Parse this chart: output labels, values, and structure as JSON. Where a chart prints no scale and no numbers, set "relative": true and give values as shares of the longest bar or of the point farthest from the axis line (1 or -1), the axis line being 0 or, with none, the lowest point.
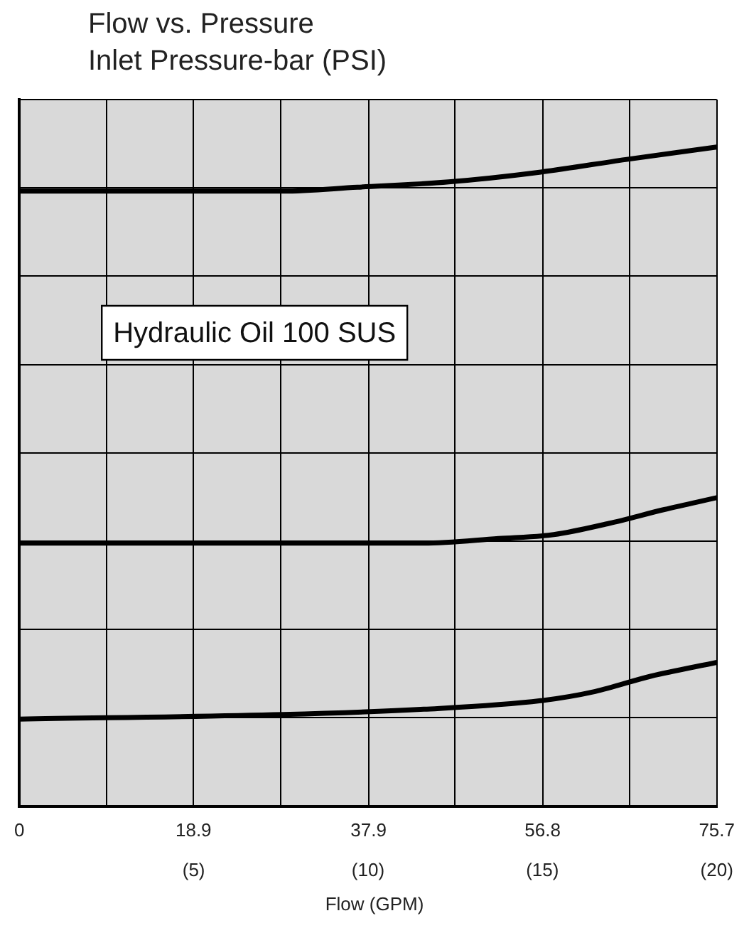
{
  "chart_data": {
    "type": "line",
    "title": "Flow vs. Pressure",
    "ylabel": "Inlet Pressure-bar (PSI)",
    "xlabel": "Flow (GPM)",
    "relative": true,
    "grid": true,
    "legend": false,
    "marker": "none",
    "line_style": "solid",
    "xlim": [
      0,
      75.7
    ],
    "xticks": [
      0,
      {
        "value": 9.46,
        "label": null
      },
      18.9,
      {
        "value": 28.4,
        "label": null
      },
      37.9,
      {
        "value": 47.3,
        "label": null
      },
      56.8,
      {
        "value": 66.2,
        "label": null
      },
      75.7
    ],
    "x2lim": [
      0,
      20
    ],
    "x2ticks": [
      {
        "value": 5,
        "label": "(5)"
      },
      {
        "value": 10,
        "label": "(10)"
      },
      {
        "value": 15,
        "label": "(15)"
      },
      {
        "value": 20,
        "label": "(20)"
      }
    ],
    "annotations": [
      "Hydraulic Oil 100 SUS"
    ],
    "series": [
      {
        "color": "#000000",
        "x": [
          0,
          28.6,
          36.7,
          46.6,
          56.6,
          65.8,
          75.7
        ],
        "values": [
          0.933,
          0.933,
          0.939,
          0.947,
          0.962,
          0.981,
          1
        ]
      },
      {
        "color": "#000000",
        "x": [
          0,
          43.9,
          52,
          58,
          64,
          70,
          75.7
        ],
        "values": [
          0.399,
          0.399,
          0.406,
          0.412,
          0.429,
          0.45,
          0.468
        ]
      },
      {
        "color": "#000000",
        "x": [
          0,
          28.6,
          43.9,
          56.6,
          62.5,
          68.5,
          75.7
        ],
        "values": [
          0.132,
          0.139,
          0.147,
          0.16,
          0.174,
          0.197,
          0.218
        ]
      }
    ]
  }
}
